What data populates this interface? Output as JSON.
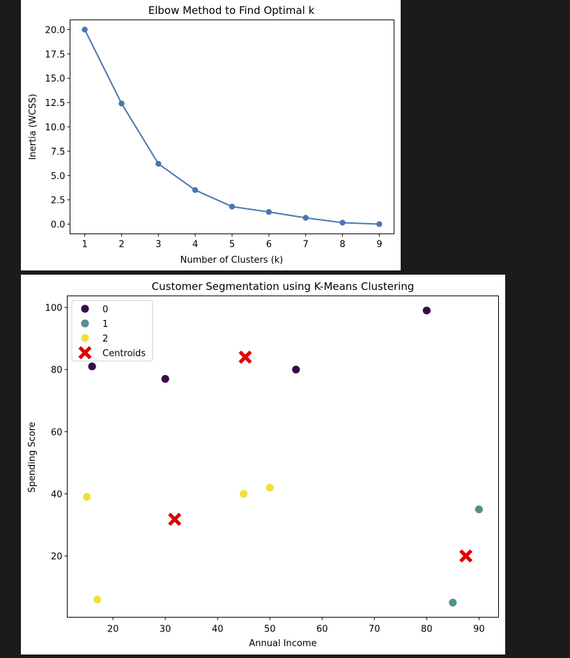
{
  "chart_data": [
    {
      "type": "line",
      "title": "Elbow Method to Find Optimal k",
      "xlabel": "Number of Clusters (k)",
      "ylabel": "Inertia (WCSS)",
      "x": [
        1,
        2,
        3,
        4,
        5,
        6,
        7,
        8,
        9
      ],
      "series": [
        {
          "values": [
            20.0,
            12.4,
            6.2,
            3.5,
            1.8,
            1.25,
            0.65,
            0.15,
            0.0
          ]
        }
      ],
      "xticks": [
        "1",
        "2",
        "3",
        "4",
        "5",
        "6",
        "7",
        "8",
        "9"
      ],
      "yticks": [
        "0.0",
        "2.5",
        "5.0",
        "7.5",
        "10.0",
        "12.5",
        "15.0",
        "17.5",
        "20.0"
      ],
      "xlim": [
        0.6,
        9.4
      ],
      "ylim": [
        -1.0,
        21.0
      ],
      "marker": "circle",
      "grid": false,
      "color": "#4a76b1"
    },
    {
      "type": "scatter",
      "title": "Customer Segmentation using K-Means Clustering",
      "xlabel": "Annual Income",
      "ylabel": "Spending Score",
      "xticks": [
        "20",
        "30",
        "40",
        "50",
        "60",
        "70",
        "80",
        "90"
      ],
      "yticks": [
        "20",
        "40",
        "60",
        "80",
        "100"
      ],
      "xlim": [
        11.25,
        93.75
      ],
      "ylim": [
        0.3,
        103.7
      ],
      "grid": false,
      "legend_position": "upper-left",
      "series": [
        {
          "name": "0",
          "color": "#3b0a49",
          "marker": "circle",
          "points": [
            [
              16,
              81
            ],
            [
              30,
              77
            ],
            [
              55,
              80
            ],
            [
              80,
              99
            ]
          ]
        },
        {
          "name": "1",
          "color": "#51918b",
          "marker": "circle",
          "points": [
            [
              90,
              35
            ],
            [
              85,
              5
            ]
          ]
        },
        {
          "name": "2",
          "color": "#f2df3a",
          "marker": "circle",
          "points": [
            [
              15,
              39
            ],
            [
              17,
              6
            ],
            [
              45,
              40
            ],
            [
              50,
              42
            ]
          ]
        },
        {
          "name": "Centroids",
          "color": "#e00000",
          "marker": "X",
          "points": [
            [
              45.3,
              84.0
            ],
            [
              31.8,
              31.8
            ],
            [
              87.5,
              20.0
            ]
          ]
        }
      ]
    }
  ]
}
